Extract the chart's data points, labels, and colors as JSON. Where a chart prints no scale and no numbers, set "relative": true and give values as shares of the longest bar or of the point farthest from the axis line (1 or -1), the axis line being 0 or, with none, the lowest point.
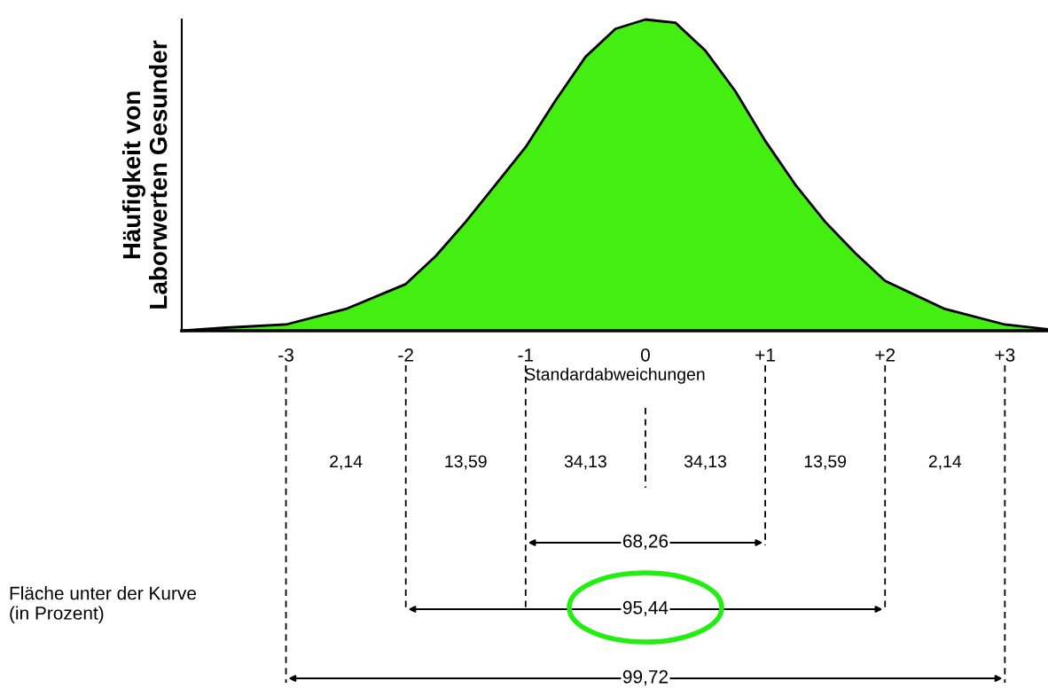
{
  "chart_data": {
    "type": "area",
    "relative": true,
    "ylabel": "Häufigkeit von\nLaborwerten Gesunder",
    "xlabel": "Standardabweichungen",
    "x": [
      -3.87,
      -3.5,
      -3,
      -2.5,
      -2,
      -1.75,
      -1.5,
      -1.25,
      -1,
      -0.75,
      -0.5,
      -0.25,
      0,
      0.25,
      0.5,
      0.75,
      1,
      1.25,
      1.5,
      1.75,
      2,
      2.5,
      3,
      3.35
    ],
    "series": [
      {
        "color": "#44ee11",
        "values": [
          0,
          0.01,
          0.02,
          0.07,
          0.15,
          0.24,
          0.35,
          0.47,
          0.59,
          0.74,
          0.88,
          0.97,
          1.0,
          0.99,
          0.9,
          0.77,
          0.61,
          0.47,
          0.35,
          0.25,
          0.16,
          0.07,
          0.02,
          0.005
        ]
      }
    ],
    "xlim": [
      -3.87,
      3.36
    ],
    "xticks": [
      {
        "value": -3,
        "label": "-3"
      },
      {
        "value": -2,
        "label": "-2"
      },
      {
        "value": -1,
        "label": "-1"
      },
      0,
      {
        "value": 1,
        "label": "+1"
      },
      {
        "value": 2,
        "label": "+2"
      },
      {
        "value": 3,
        "label": "+3"
      }
    ],
    "tick_labels": "x",
    "grid": false,
    "legend": false,
    "annotations": [
      "2,14",
      "13,59",
      "34,13",
      "34,13",
      "13,59",
      "2,14",
      "68,26",
      "95,44",
      "99,72",
      "Fläche unter der Kurve\n(in Prozent)"
    ]
  }
}
